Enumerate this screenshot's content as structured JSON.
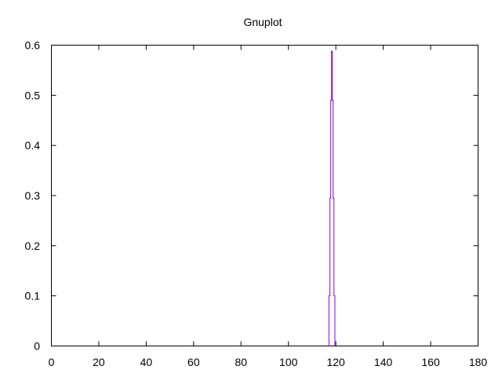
{
  "chart_data": {
    "type": "line",
    "title": "Gnuplot",
    "xlabel": "",
    "ylabel": "",
    "xlim": [
      0,
      180
    ],
    "ylim": [
      0,
      0.6
    ],
    "xticks": [
      0,
      20,
      40,
      60,
      80,
      100,
      120,
      140,
      160,
      180
    ],
    "xtick_labels": [
      "0",
      "20",
      "40",
      "60",
      "80",
      "100",
      "120",
      "140",
      "160",
      "180"
    ],
    "yticks": [
      0,
      0.1,
      0.2,
      0.3,
      0.4,
      0.5,
      0.6
    ],
    "ytick_labels": [
      "0",
      "0.1",
      "0.2",
      "0.3",
      "0.4",
      "0.5",
      "0.6"
    ],
    "grid": false,
    "legend": "none",
    "series": [
      {
        "color": "#9400d3",
        "style": "steps",
        "points": [
          [
            117.1,
            0
          ],
          [
            117.1,
            0.1
          ],
          [
            117.5,
            0.1
          ],
          [
            117.5,
            0.295
          ],
          [
            117.85,
            0.295
          ],
          [
            117.85,
            0.49
          ],
          [
            118.2,
            0.49
          ],
          [
            118.2,
            0.588
          ],
          [
            118.5,
            0.588
          ],
          [
            118.5,
            0.49
          ],
          [
            118.85,
            0.49
          ],
          [
            118.85,
            0.295
          ],
          [
            119.2,
            0.295
          ],
          [
            119.2,
            0.1
          ],
          [
            119.6,
            0.1
          ],
          [
            119.6,
            0
          ]
        ]
      }
    ]
  }
}
